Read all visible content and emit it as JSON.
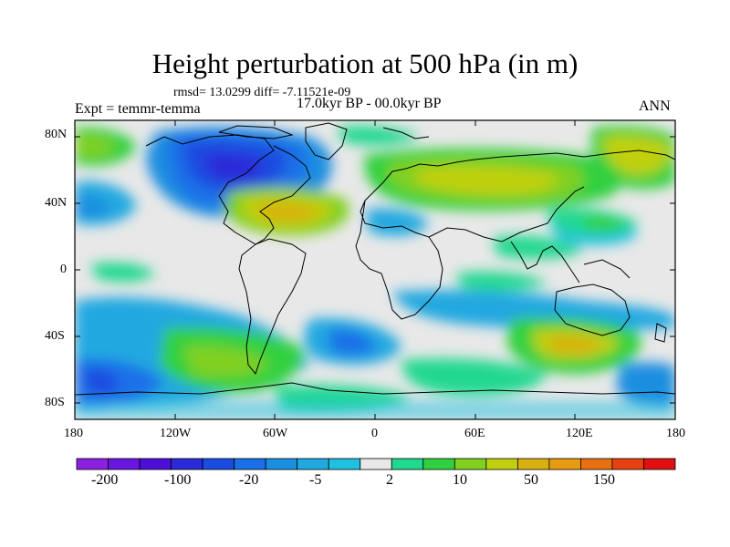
{
  "title": "Height perturbation at 500 hPa (in m)",
  "stats_line": "rmsd= 13.0299  diff= -7.11521e-09",
  "period_line": "17.0kyr BP - 00.0kyr BP",
  "experiment_line": "Expt = temmr-temma",
  "season": "ANN",
  "map": {
    "type": "filled-contour world map",
    "lon_ticks": [
      "180",
      "120W",
      "60W",
      "0",
      "60E",
      "120E",
      "180"
    ],
    "lat_ticks": [
      "80N",
      "40N",
      "0",
      "40S",
      "80S"
    ],
    "lon_range": [
      -180,
      180
    ],
    "lat_range": [
      -90,
      90
    ]
  },
  "colorbar": {
    "labels": [
      "-200",
      "-100",
      "-20",
      "-5",
      "2",
      "10",
      "50",
      "150"
    ],
    "colors": [
      "#8c20e0",
      "#6a16e0",
      "#4a10d8",
      "#2a2ad8",
      "#1a4ce0",
      "#1a70e8",
      "#1a8ee0",
      "#20a8e0",
      "#20c0e0",
      "#e8e8e8",
      "#20d890",
      "#30d040",
      "#80d020",
      "#c0d010",
      "#d8b010",
      "#e89a10",
      "#e87010",
      "#e84010",
      "#e01010"
    ]
  },
  "contour_levels": [
    -300,
    -200,
    -150,
    -100,
    -50,
    -20,
    -10,
    -5,
    -2,
    2,
    5,
    10,
    20,
    50,
    100,
    150,
    200,
    300
  ]
}
